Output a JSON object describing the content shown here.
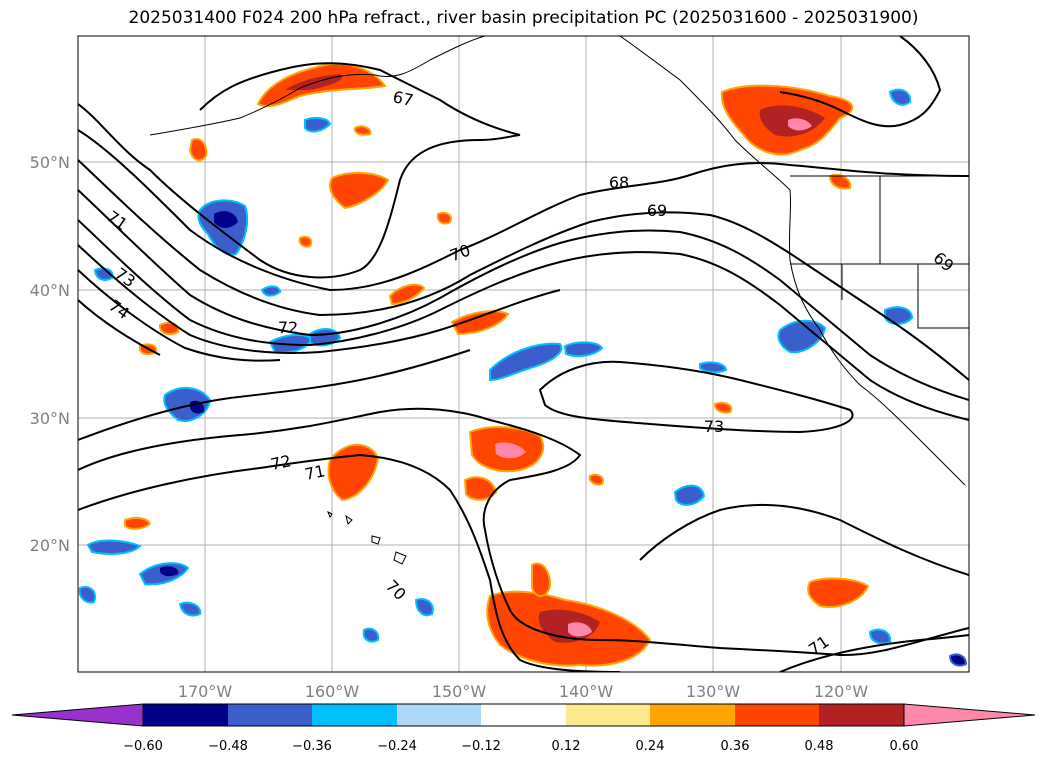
{
  "title": "2025031400 F024 200 hPa refract., river basin precipitation PC (2025031600 - 2025031900)",
  "map": {
    "lat_labels": [
      "50°N",
      "40°N",
      "30°N",
      "20°N"
    ],
    "lon_labels": [
      "170°W",
      "160°W",
      "150°W",
      "140°W",
      "130°W",
      "120°W"
    ],
    "contour_labels": [
      {
        "text": "67"
      },
      {
        "text": "68"
      },
      {
        "text": "69"
      },
      {
        "text": "70"
      },
      {
        "text": "71"
      },
      {
        "text": "73"
      },
      {
        "text": "74"
      },
      {
        "text": "72"
      },
      {
        "text": "72"
      },
      {
        "text": "71"
      },
      {
        "text": "73"
      },
      {
        "text": "69"
      },
      {
        "text": "70"
      },
      {
        "text": "71"
      }
    ],
    "colors": {
      "line": "#000000",
      "grid": "#b0b0b0",
      "pos_weak": "#ffe98f",
      "pos_mid": "#ffa500",
      "pos_strong": "#ff4500",
      "pos_xstrong": "#b22222",
      "pos_max": "#ff88aa",
      "neg_weak": "#add8f5",
      "neg_mid": "#00bfff",
      "neg_strong": "#3a5fcd",
      "neg_xstrong": "#00008b"
    }
  },
  "colorbar": {
    "ticks": [
      "−0.60",
      "−0.48",
      "−0.36",
      "−0.24",
      "−0.12",
      "0.12",
      "0.24",
      "0.36",
      "0.48",
      "0.60"
    ],
    "colors": [
      "#9932cc",
      "#00008b",
      "#3a5fcd",
      "#00bfff",
      "#add8f5",
      "#ffffff",
      "#ffe98f",
      "#ffa500",
      "#ff4500",
      "#b22222",
      "#ff88aa"
    ]
  }
}
